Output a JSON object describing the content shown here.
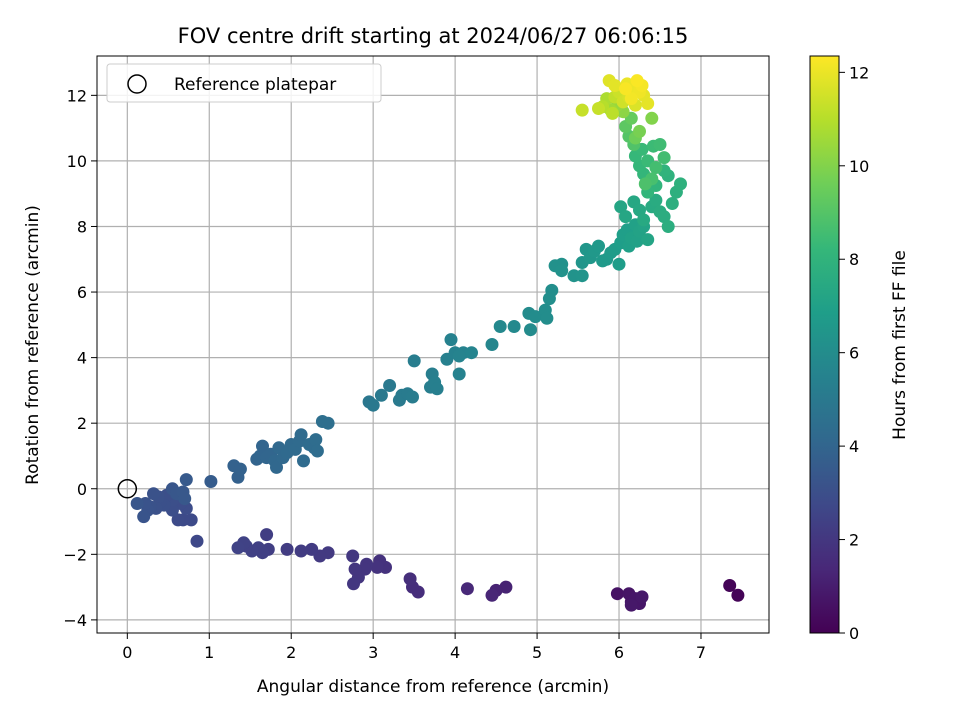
{
  "chart_data": {
    "type": "scatter",
    "title": "FOV centre drift starting at 2024/06/27 06:06:15",
    "xlabel": "Angular distance from reference (arcmin)",
    "ylabel": "Rotation from reference (arcmin)",
    "xlim": [
      -0.37,
      7.83
    ],
    "ylim": [
      -4.4,
      13.2
    ],
    "xticks": [
      0,
      1,
      2,
      3,
      4,
      5,
      6,
      7
    ],
    "yticks": [
      -4,
      -2,
      0,
      2,
      4,
      6,
      8,
      10,
      12
    ],
    "grid": true,
    "legend": {
      "placement": "top-left",
      "entries": [
        "Reference platepar"
      ]
    },
    "reference_point": {
      "x": 0,
      "y": 0,
      "label": "Reference platepar"
    },
    "colorbar": {
      "label": "Hours from first FF file",
      "range": [
        0,
        12.35
      ],
      "ticks": [
        0,
        2,
        4,
        6,
        8,
        10,
        12
      ],
      "colormap": "viridis",
      "stops": [
        "#440154",
        "#482878",
        "#3e4989",
        "#31688e",
        "#26828e",
        "#1f9e89",
        "#35b779",
        "#6ece58",
        "#b5de2b",
        "#fde725"
      ]
    },
    "points": [
      [
        7.35,
        -2.95,
        0.1
      ],
      [
        7.45,
        -3.25,
        0.1
      ],
      [
        5.98,
        -3.2,
        0.6
      ],
      [
        6.12,
        -3.2,
        0.7
      ],
      [
        6.15,
        -3.45,
        0.7
      ],
      [
        6.2,
        -3.35,
        0.75
      ],
      [
        6.25,
        -3.5,
        0.75
      ],
      [
        6.15,
        -3.55,
        0.8
      ],
      [
        6.28,
        -3.3,
        0.8
      ],
      [
        4.62,
        -3.0,
        1.2
      ],
      [
        4.5,
        -3.1,
        1.2
      ],
      [
        4.45,
        -3.25,
        1.3
      ],
      [
        4.15,
        -3.05,
        1.4
      ],
      [
        3.55,
        -3.15,
        1.6
      ],
      [
        3.48,
        -3.0,
        1.6
      ],
      [
        3.45,
        -2.75,
        1.65
      ],
      [
        3.15,
        -2.4,
        1.8
      ],
      [
        3.08,
        -2.2,
        1.8
      ],
      [
        3.05,
        -2.4,
        1.85
      ],
      [
        2.92,
        -2.3,
        1.9
      ],
      [
        2.9,
        -2.45,
        1.9
      ],
      [
        2.82,
        -2.7,
        1.95
      ],
      [
        2.78,
        -2.45,
        1.95
      ],
      [
        2.75,
        -2.05,
        2.0
      ],
      [
        2.76,
        -2.9,
        2.0
      ],
      [
        2.45,
        -1.95,
        2.1
      ],
      [
        2.35,
        -2.05,
        2.1
      ],
      [
        2.25,
        -1.85,
        2.15
      ],
      [
        2.12,
        -1.9,
        2.2
      ],
      [
        1.95,
        -1.85,
        2.2
      ],
      [
        1.72,
        -1.85,
        2.3
      ],
      [
        1.7,
        -1.4,
        2.3
      ],
      [
        1.65,
        -1.95,
        2.35
      ],
      [
        1.6,
        -1.8,
        2.35
      ],
      [
        1.52,
        -1.9,
        2.4
      ],
      [
        1.45,
        -1.75,
        2.4
      ],
      [
        1.42,
        -1.65,
        2.45
      ],
      [
        1.35,
        -1.8,
        2.5
      ],
      [
        0.85,
        -1.6,
        2.7
      ],
      [
        0.78,
        -0.95,
        2.8
      ],
      [
        0.68,
        -0.95,
        2.8
      ],
      [
        0.62,
        -0.95,
        2.85
      ],
      [
        0.72,
        -0.6,
        2.9
      ],
      [
        0.65,
        -0.45,
        2.9
      ],
      [
        0.55,
        -0.65,
        2.95
      ],
      [
        0.55,
        -0.35,
        3.0
      ],
      [
        0.48,
        -0.2,
        3.0
      ],
      [
        0.45,
        -0.5,
        3.05
      ],
      [
        0.4,
        -0.4,
        3.05
      ],
      [
        0.38,
        -0.25,
        3.1
      ],
      [
        0.35,
        -0.6,
        3.1
      ],
      [
        0.32,
        -0.15,
        3.15
      ],
      [
        0.28,
        -0.55,
        3.15
      ],
      [
        0.25,
        -0.65,
        3.2
      ],
      [
        0.22,
        -0.45,
        3.2
      ],
      [
        0.2,
        -0.85,
        3.25
      ],
      [
        0.12,
        -0.45,
        3.3
      ],
      [
        0.55,
        0.0,
        3.3
      ],
      [
        0.6,
        -0.15,
        3.35
      ],
      [
        0.68,
        -0.1,
        3.4
      ],
      [
        0.7,
        -0.3,
        3.4
      ],
      [
        0.72,
        0.28,
        3.5
      ],
      [
        1.02,
        0.22,
        3.6
      ],
      [
        1.35,
        0.35,
        3.8
      ],
      [
        1.3,
        0.7,
        3.85
      ],
      [
        1.38,
        0.6,
        3.85
      ],
      [
        1.58,
        0.9,
        3.95
      ],
      [
        1.62,
        1.0,
        4.0
      ],
      [
        1.65,
        1.3,
        4.0
      ],
      [
        1.7,
        0.95,
        4.05
      ],
      [
        1.75,
        1.05,
        4.05
      ],
      [
        1.8,
        0.85,
        4.1
      ],
      [
        1.82,
        0.65,
        4.1
      ],
      [
        1.85,
        1.25,
        4.15
      ],
      [
        1.9,
        0.95,
        4.15
      ],
      [
        1.95,
        1.1,
        4.2
      ],
      [
        2.0,
        1.35,
        4.2
      ],
      [
        2.05,
        1.2,
        4.25
      ],
      [
        2.1,
        1.45,
        4.25
      ],
      [
        2.12,
        1.65,
        4.3
      ],
      [
        2.15,
        0.85,
        4.3
      ],
      [
        2.22,
        1.35,
        4.35
      ],
      [
        2.28,
        1.25,
        4.35
      ],
      [
        2.3,
        1.5,
        4.4
      ],
      [
        2.32,
        1.15,
        4.4
      ],
      [
        2.38,
        2.05,
        4.5
      ],
      [
        2.45,
        2.0,
        4.5
      ],
      [
        2.95,
        2.65,
        4.9
      ],
      [
        3.0,
        2.55,
        4.95
      ],
      [
        3.1,
        2.85,
        5.0
      ],
      [
        3.2,
        3.15,
        5.0
      ],
      [
        3.32,
        2.7,
        5.05
      ],
      [
        3.35,
        2.85,
        5.1
      ],
      [
        3.42,
        2.9,
        5.1
      ],
      [
        3.48,
        2.8,
        5.15
      ],
      [
        3.5,
        3.9,
        5.2
      ],
      [
        3.7,
        3.1,
        5.3
      ],
      [
        3.72,
        3.5,
        5.3
      ],
      [
        3.75,
        3.25,
        5.35
      ],
      [
        3.78,
        3.05,
        5.35
      ],
      [
        3.9,
        3.95,
        5.4
      ],
      [
        3.95,
        4.55,
        5.45
      ],
      [
        4.0,
        4.15,
        5.45
      ],
      [
        4.05,
        3.5,
        5.5
      ],
      [
        4.1,
        4.15,
        5.5
      ],
      [
        4.05,
        4.05,
        5.55
      ],
      [
        4.2,
        4.15,
        5.6
      ],
      [
        4.45,
        4.4,
        5.7
      ],
      [
        4.55,
        4.95,
        5.8
      ],
      [
        4.72,
        4.95,
        5.85
      ],
      [
        4.9,
        5.35,
        5.95
      ],
      [
        4.92,
        4.85,
        5.95
      ],
      [
        4.98,
        5.25,
        6.0
      ],
      [
        5.1,
        5.45,
        6.05
      ],
      [
        5.12,
        5.2,
        6.05
      ],
      [
        5.15,
        5.8,
        6.1
      ],
      [
        5.18,
        6.05,
        6.1
      ],
      [
        5.22,
        6.8,
        6.2
      ],
      [
        5.3,
        6.85,
        6.2
      ],
      [
        5.3,
        6.65,
        6.25
      ],
      [
        5.45,
        6.5,
        6.3
      ],
      [
        5.55,
        6.5,
        6.35
      ],
      [
        5.55,
        6.9,
        6.4
      ],
      [
        5.6,
        7.3,
        6.45
      ],
      [
        5.65,
        7.05,
        6.5
      ],
      [
        5.7,
        7.25,
        6.55
      ],
      [
        5.75,
        7.4,
        6.6
      ],
      [
        5.8,
        6.95,
        6.65
      ],
      [
        5.85,
        7.0,
        6.65
      ],
      [
        5.9,
        7.2,
        6.7
      ],
      [
        5.95,
        7.3,
        6.75
      ],
      [
        6.0,
        6.85,
        6.8
      ],
      [
        6.02,
        7.5,
        6.85
      ],
      [
        6.05,
        7.75,
        6.9
      ],
      [
        6.1,
        7.9,
        6.9
      ],
      [
        6.12,
        7.4,
        6.95
      ],
      [
        6.15,
        7.65,
        7.0
      ],
      [
        6.2,
        8.05,
        7.05
      ],
      [
        6.22,
        7.55,
        7.05
      ],
      [
        6.25,
        7.85,
        7.1
      ],
      [
        6.3,
        8.0,
        7.15
      ],
      [
        6.35,
        7.6,
        7.2
      ],
      [
        6.02,
        8.6,
        7.25
      ],
      [
        6.08,
        8.3,
        7.3
      ],
      [
        6.18,
        8.75,
        7.35
      ],
      [
        6.25,
        8.5,
        7.4
      ],
      [
        6.3,
        8.2,
        7.45
      ],
      [
        6.4,
        8.6,
        7.5
      ],
      [
        6.45,
        8.8,
        7.55
      ],
      [
        6.5,
        8.45,
        7.6
      ],
      [
        6.55,
        8.3,
        7.65
      ],
      [
        6.6,
        8.0,
        7.7
      ],
      [
        6.65,
        8.7,
        7.75
      ],
      [
        6.7,
        9.05,
        7.8
      ],
      [
        6.75,
        9.3,
        7.85
      ],
      [
        6.6,
        9.55,
        7.9
      ],
      [
        6.55,
        9.7,
        8.0
      ],
      [
        6.45,
        9.25,
        8.05
      ],
      [
        6.35,
        9.05,
        8.1
      ],
      [
        6.3,
        9.6,
        8.15
      ],
      [
        6.25,
        9.85,
        8.2
      ],
      [
        6.2,
        10.15,
        8.25
      ],
      [
        6.28,
        10.35,
        8.3
      ],
      [
        6.35,
        10.0,
        8.35
      ],
      [
        6.42,
        10.45,
        8.4
      ],
      [
        6.5,
        10.5,
        8.5
      ],
      [
        6.55,
        10.1,
        8.55
      ],
      [
        6.45,
        9.8,
        8.6
      ],
      [
        6.4,
        9.45,
        8.7
      ],
      [
        6.32,
        9.3,
        8.8
      ],
      [
        6.18,
        10.5,
        8.9
      ],
      [
        6.12,
        10.75,
        9.0
      ],
      [
        6.08,
        11.05,
        9.2
      ],
      [
        6.15,
        11.3,
        9.4
      ],
      [
        6.2,
        10.7,
        9.6
      ],
      [
        6.25,
        10.9,
        9.8
      ],
      [
        6.4,
        11.3,
        10.0
      ],
      [
        6.05,
        11.5,
        10.2
      ],
      [
        5.98,
        11.7,
        10.4
      ],
      [
        5.9,
        11.55,
        10.6
      ],
      [
        5.85,
        11.9,
        10.8
      ],
      [
        5.8,
        11.65,
        11.0
      ],
      [
        5.92,
        11.45,
        11.1
      ],
      [
        5.95,
        11.95,
        11.2
      ],
      [
        5.55,
        11.55,
        11.3
      ],
      [
        5.75,
        11.6,
        11.3
      ],
      [
        6.0,
        12.1,
        11.4
      ],
      [
        6.05,
        11.8,
        11.5
      ],
      [
        6.12,
        11.95,
        11.6
      ],
      [
        6.2,
        11.7,
        11.7
      ],
      [
        5.88,
        12.45,
        11.8
      ],
      [
        5.95,
        12.3,
        11.85
      ],
      [
        6.3,
        12.0,
        11.9
      ],
      [
        6.35,
        11.75,
        11.9
      ],
      [
        6.1,
        12.35,
        12.0
      ],
      [
        6.18,
        12.25,
        12.05
      ],
      [
        6.25,
        12.1,
        12.1
      ],
      [
        6.15,
        11.9,
        12.15
      ],
      [
        6.28,
        12.3,
        12.2
      ],
      [
        6.08,
        12.2,
        12.25
      ],
      [
        6.22,
        12.45,
        12.3
      ]
    ]
  }
}
